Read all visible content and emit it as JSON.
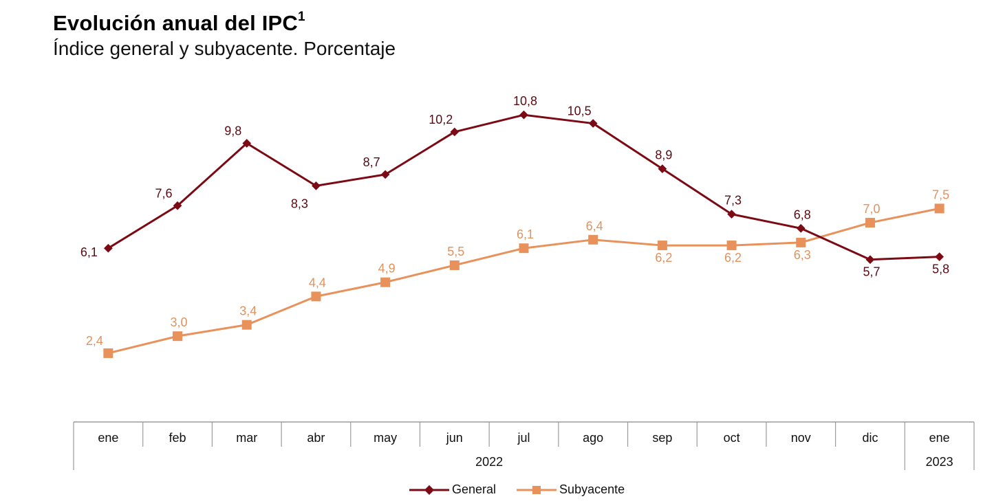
{
  "header": {
    "title": "Evolución anual del IPC",
    "title_footnote": "1",
    "subtitle": "Índice general y subyacente. Porcentaje"
  },
  "chart_data": {
    "type": "line",
    "title": "Evolución anual del IPC",
    "subtitle": "Índice general y subyacente. Porcentaje",
    "xlabel": "",
    "ylabel": "",
    "categories": [
      "ene",
      "feb",
      "mar",
      "abr",
      "may",
      "jun",
      "jul",
      "ago",
      "sep",
      "oct",
      "nov",
      "dic",
      "ene"
    ],
    "year_groups": [
      {
        "label": "2022",
        "span": 12
      },
      {
        "label": "2023",
        "span": 1
      }
    ],
    "series": [
      {
        "name": "General",
        "color": "#7b0a14",
        "marker": "diamond",
        "values": [
          6.1,
          7.6,
          9.8,
          8.3,
          8.7,
          10.2,
          10.8,
          10.5,
          8.9,
          7.3,
          6.8,
          5.7,
          5.8
        ],
        "labels": [
          "6,1",
          "7,6",
          "9,8",
          "8,3",
          "8,7",
          "10,2",
          "10,8",
          "10,5",
          "8,9",
          "7,3",
          "6,8",
          "5,7",
          "5,8"
        ],
        "label_positions": [
          "left",
          "above-left",
          "above-left",
          "below-left",
          "above-left",
          "above-left",
          "above",
          "above-left",
          "above",
          "above",
          "above",
          "below",
          "below"
        ]
      },
      {
        "name": "Subyacente",
        "color": "#e8915a",
        "marker": "square",
        "values": [
          2.4,
          3.0,
          3.4,
          4.4,
          4.9,
          5.5,
          6.1,
          6.4,
          6.2,
          6.2,
          6.3,
          7.0,
          7.5
        ],
        "labels": [
          "2,4",
          "3,0",
          "3,4",
          "4,4",
          "4,9",
          "5,5",
          "6,1",
          "6,4",
          "6,2",
          "6,2",
          "6,3",
          "7,0",
          "7,5"
        ],
        "label_positions": [
          "above-left",
          "above",
          "above",
          "above",
          "above",
          "above",
          "above",
          "above",
          "below",
          "below",
          "below",
          "above",
          "above"
        ]
      }
    ],
    "ylim": [
      0,
      11.5
    ],
    "grid": false,
    "legend": "bottom-center"
  }
}
